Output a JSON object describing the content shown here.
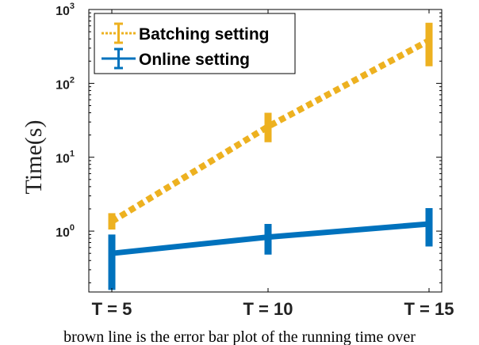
{
  "chart_data": {
    "type": "line",
    "title": "",
    "xlabel": "",
    "ylabel": "Time(s)",
    "yscale": "log",
    "ylim": [
      0.15,
      1000
    ],
    "categories": [
      "T = 5",
      "T = 10",
      "T = 15"
    ],
    "y_ticks": [
      {
        "value": 1,
        "base": "10",
        "exp": "0"
      },
      {
        "value": 10,
        "base": "10",
        "exp": "1"
      },
      {
        "value": 100,
        "base": "10",
        "exp": "2"
      },
      {
        "value": 1000,
        "base": "10",
        "exp": "3"
      }
    ],
    "legend_position": "top-left",
    "grid": false,
    "series": [
      {
        "name": "Batching setting",
        "color": "#EDB120",
        "line_style": "dotted",
        "values": [
          1.35,
          26,
          380
        ],
        "error_low": [
          1.05,
          16,
          170
        ],
        "error_high": [
          1.75,
          40,
          660
        ]
      },
      {
        "name": "Online setting",
        "color": "#0072BD",
        "line_style": "solid",
        "values": [
          0.5,
          0.83,
          1.25
        ],
        "error_low": [
          0.16,
          0.48,
          0.62
        ],
        "error_high": [
          0.9,
          1.25,
          2.05
        ]
      }
    ]
  },
  "caption": "brown line is the error bar plot of the running time over"
}
